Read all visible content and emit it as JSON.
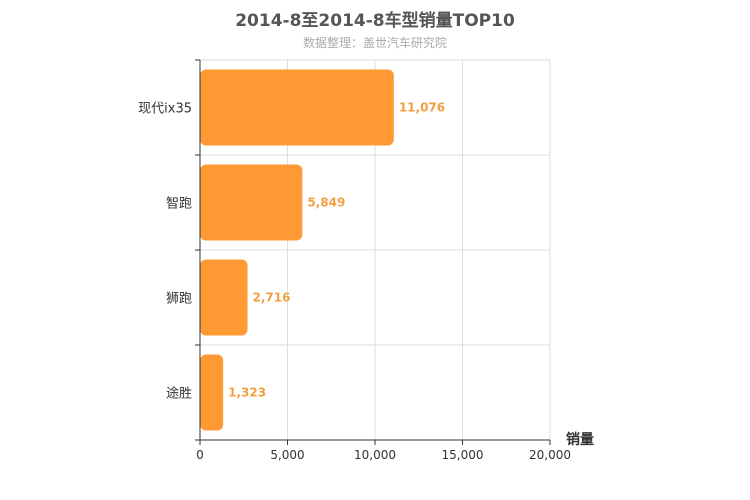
{
  "chart_data": {
    "type": "bar",
    "orientation": "horizontal",
    "title": "2014-8至2014-8车型销量TOP10",
    "subtitle": "数据整理：盖世汽车研究院",
    "xlabel": "销量",
    "ylabel": "",
    "categories": [
      "现代ix35",
      "智跑",
      "狮跑",
      "途胜"
    ],
    "values": [
      11076,
      5849,
      2716,
      1323
    ],
    "value_labels": [
      "11,076",
      "5,849",
      "2,716",
      "1,323"
    ],
    "xlim": [
      0,
      20000
    ],
    "x_ticks": [
      0,
      5000,
      10000,
      15000,
      20000
    ],
    "x_tick_labels": [
      "0",
      "5,000",
      "10,000",
      "15,000",
      "20,000"
    ],
    "grid": true,
    "legend": "none",
    "bar_color": "#ff9933",
    "label_color": "#f0a040"
  }
}
